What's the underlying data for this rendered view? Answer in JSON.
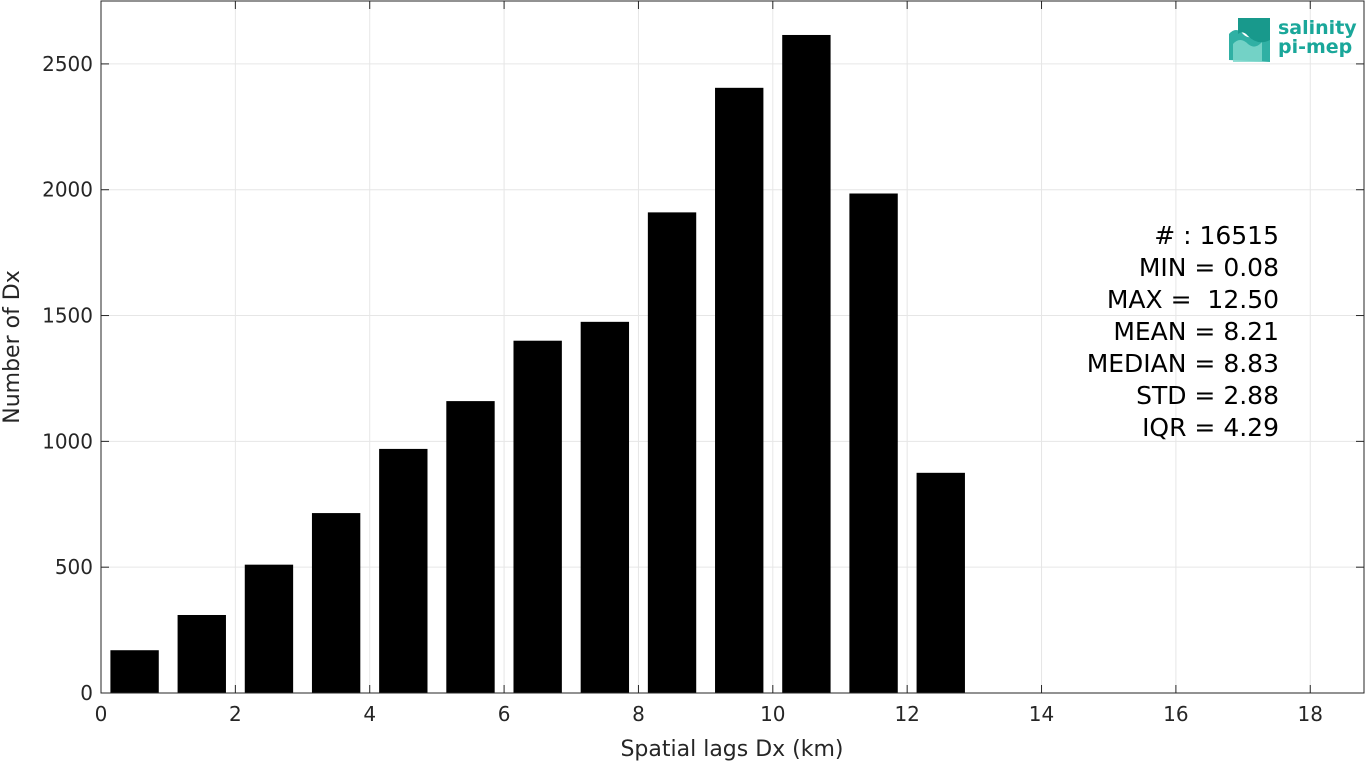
{
  "chart_data": {
    "type": "bar",
    "xlabel": "Spatial lags Dx (km)",
    "ylabel": "Number of Dx",
    "xlim": [
      0,
      18.8
    ],
    "ylim": [
      0,
      2750
    ],
    "xticks": [
      0,
      2,
      4,
      6,
      8,
      10,
      12,
      14,
      16,
      18
    ],
    "yticks": [
      0,
      500,
      1000,
      1500,
      2000,
      2500
    ],
    "grid": true,
    "bar_color": "#000000",
    "bin_width": 1,
    "bar_width_fraction": 0.72,
    "bins": [
      {
        "center": 0.5,
        "value": 170
      },
      {
        "center": 1.5,
        "value": 310
      },
      {
        "center": 2.5,
        "value": 510
      },
      {
        "center": 3.5,
        "value": 715
      },
      {
        "center": 4.5,
        "value": 970
      },
      {
        "center": 5.5,
        "value": 1160
      },
      {
        "center": 6.5,
        "value": 1400
      },
      {
        "center": 7.5,
        "value": 1475
      },
      {
        "center": 8.5,
        "value": 1910
      },
      {
        "center": 9.5,
        "value": 2405
      },
      {
        "center": 10.5,
        "value": 2615
      },
      {
        "center": 11.5,
        "value": 1985
      },
      {
        "center": 12.5,
        "value": 875
      }
    ],
    "annotations": [
      "# : 16515",
      "MIN = 0.08",
      "MAX =  12.50",
      "MEAN = 8.21",
      "MEDIAN = 8.83",
      "STD = 2.88",
      "IQR = 4.29"
    ]
  },
  "logo": {
    "line1": "salinity",
    "line2": "pi-mep",
    "color": "#1aa79a"
  }
}
